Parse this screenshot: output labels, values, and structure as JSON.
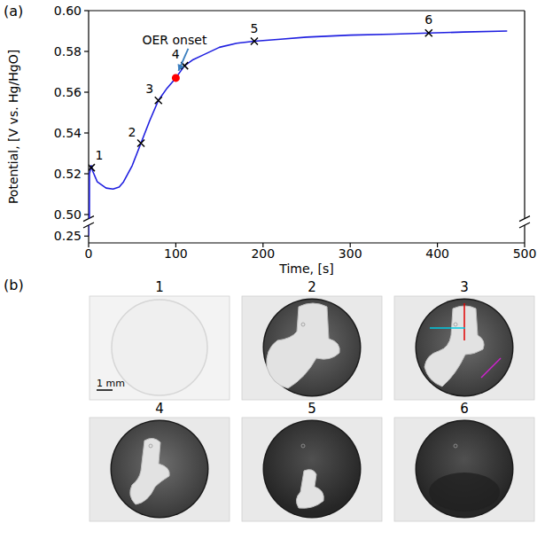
{
  "chart_data": {
    "type": "line",
    "x_label": "Time, [s]",
    "y_label": "Potential, [V vs. Hg/HgO]",
    "xlim": [
      0,
      500
    ],
    "xticks": [
      0,
      100,
      200,
      300,
      400,
      500
    ],
    "ylim": [
      0.245,
      0.6
    ],
    "y_break": [
      0.258,
      0.498
    ],
    "yticks": [
      {
        "value": 0.25,
        "label": "0.25"
      },
      {
        "value": 0.5,
        "label": "0.50"
      },
      0.52,
      0.54,
      0.56,
      0.58,
      {
        "value": 0.6,
        "label": "0.60"
      }
    ],
    "grid": false,
    "marker": "x",
    "x": [
      0,
      1,
      3,
      5,
      10,
      20,
      28,
      35,
      40,
      50,
      60,
      70,
      80,
      90,
      100,
      110,
      120,
      130,
      150,
      170,
      190,
      220,
      250,
      300,
      350,
      390,
      430,
      480
    ],
    "series": [
      {
        "color": "#1f1fe0",
        "values": [
          0.25,
          0.52,
          0.524,
          0.521,
          0.516,
          0.513,
          0.5125,
          0.5135,
          0.516,
          0.524,
          0.535,
          0.546,
          0.556,
          0.562,
          0.567,
          0.573,
          0.576,
          0.578,
          0.582,
          0.584,
          0.585,
          0.586,
          0.587,
          0.588,
          0.5885,
          0.589,
          0.5895,
          0.59
        ]
      }
    ],
    "annotations": [
      {
        "label": "1",
        "x": 3,
        "y": 0.523
      },
      {
        "label": "2",
        "x": 60,
        "y": 0.535
      },
      {
        "label": "3",
        "x": 80,
        "y": 0.556
      },
      {
        "label": "4",
        "x": 110,
        "y": 0.573
      },
      {
        "label": "5",
        "x": 190,
        "y": 0.585
      },
      {
        "label": "6",
        "x": 390,
        "y": 0.589
      }
    ],
    "onset": {
      "label": "OER onset",
      "x": 100,
      "y": 0.567,
      "color": "#ff0000"
    }
  },
  "figure": {
    "panels": [
      "(a)",
      "(b)"
    ],
    "images": [
      {
        "title": "1"
      },
      {
        "title": "2"
      },
      {
        "title": "3"
      },
      {
        "title": "4"
      },
      {
        "title": "5"
      },
      {
        "title": "6"
      }
    ],
    "scale_bar": "1 mm"
  }
}
